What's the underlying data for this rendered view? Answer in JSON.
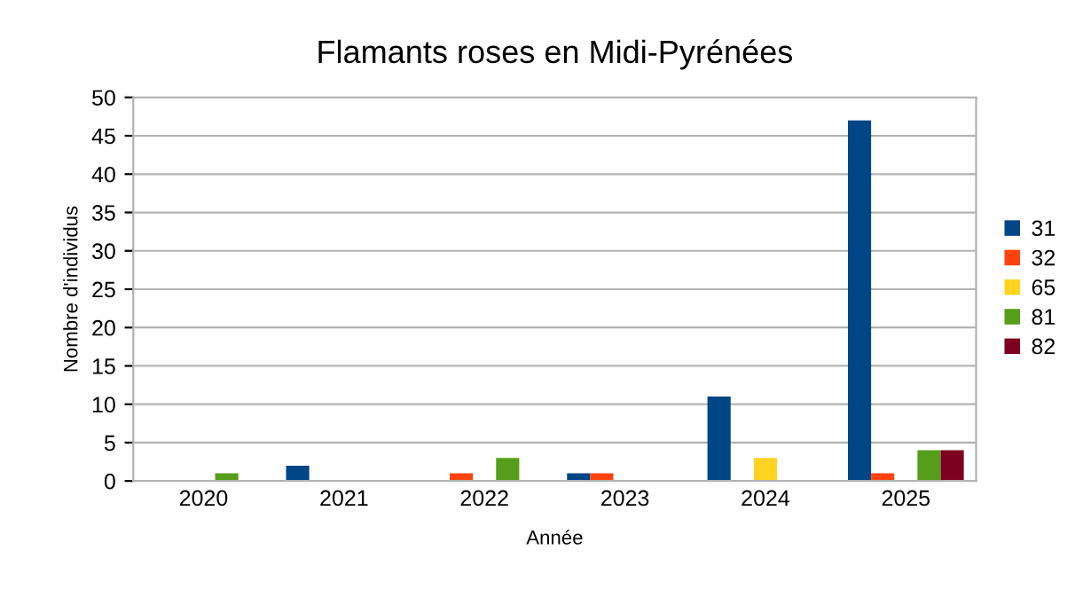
{
  "chart_data": {
    "type": "bar",
    "title": "Flamants roses en Midi-Pyrénées",
    "xlabel": "Année",
    "ylabel": "Nombre d'individus",
    "categories": [
      "2020",
      "2021",
      "2022",
      "2023",
      "2024",
      "2025"
    ],
    "series": [
      {
        "name": "31",
        "color": "#004586",
        "values": [
          0,
          2,
          0,
          1,
          11,
          47
        ]
      },
      {
        "name": "32",
        "color": "#ff420e",
        "values": [
          0,
          0,
          1,
          1,
          0,
          1
        ]
      },
      {
        "name": "65",
        "color": "#ffd320",
        "values": [
          0,
          0,
          0,
          0,
          3,
          0
        ]
      },
      {
        "name": "81",
        "color": "#579d1c",
        "values": [
          1,
          0,
          3,
          0,
          0,
          4
        ]
      },
      {
        "name": "82",
        "color": "#7e0021",
        "values": [
          0,
          0,
          0,
          0,
          0,
          4
        ]
      }
    ],
    "ylim": [
      0,
      50
    ],
    "yticks": [
      0,
      5,
      10,
      15,
      20,
      25,
      30,
      35,
      40,
      45,
      50
    ],
    "grid": "y",
    "legend": "right"
  }
}
